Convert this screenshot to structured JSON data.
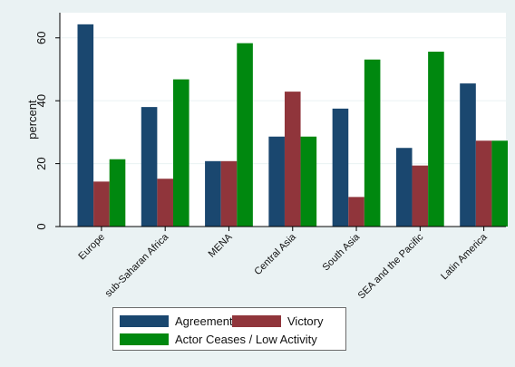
{
  "chart_data": {
    "type": "bar",
    "ylabel": "percent",
    "xlabel": "",
    "ylim": [
      0,
      68
    ],
    "yticks": [
      0,
      20,
      40,
      60
    ],
    "grid": true,
    "legend_position": "bottom",
    "categories": [
      "Europe",
      "sub-Saharan Africa",
      "MENA",
      "Central Asia",
      "South Asia",
      "SEA and the Pacific",
      "Latin America"
    ],
    "series": [
      {
        "name": "Agreement",
        "color": "#1a476f",
        "values": [
          64.3,
          38.0,
          20.8,
          28.6,
          37.5,
          25.0,
          45.5
        ]
      },
      {
        "name": "Victory",
        "color": "#90353b",
        "values": [
          14.3,
          15.2,
          20.8,
          42.9,
          9.4,
          19.4,
          27.3
        ]
      },
      {
        "name": "Actor Ceases / Low Activity",
        "color": "#00880f",
        "values": [
          21.4,
          46.8,
          58.3,
          28.6,
          53.1,
          55.6,
          27.3
        ]
      }
    ]
  }
}
